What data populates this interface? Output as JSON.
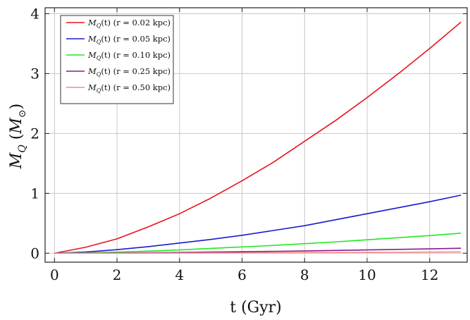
{
  "chart_data": {
    "type": "line",
    "title": "",
    "xlabel": "t (Gyr)",
    "ylabel_main": "M",
    "ylabel_sub": "Q",
    "ylabel_unit_main": "M",
    "ylabel_unit_sub": "⊙",
    "xlim": [
      -0.3,
      13.2
    ],
    "ylim": [
      -0.15,
      4.1
    ],
    "x_ticks": [
      0,
      2,
      4,
      6,
      8,
      10,
      12
    ],
    "y_ticks": [
      0,
      1,
      2,
      3,
      4
    ],
    "grid": true,
    "legend_position": "top-left",
    "x": [
      0,
      1,
      2,
      3,
      4,
      5,
      6,
      7,
      8,
      9,
      10,
      11,
      12,
      13
    ],
    "series": [
      {
        "legend_main": "M",
        "legend_sub": "Q",
        "legend_rest": "(t) (r = 0.02 kpc)",
        "color": "#e8141c",
        "values": [
          0.0,
          0.1,
          0.24,
          0.44,
          0.66,
          0.92,
          1.21,
          1.52,
          1.87,
          2.22,
          2.6,
          3.0,
          3.42,
          3.86
        ]
      },
      {
        "legend_main": "M",
        "legend_sub": "Q",
        "legend_rest": "(t) (r = 0.05 kpc)",
        "color": "#1a1ad0",
        "values": [
          0.0,
          0.02,
          0.06,
          0.11,
          0.17,
          0.23,
          0.3,
          0.38,
          0.46,
          0.56,
          0.66,
          0.76,
          0.86,
          0.97
        ]
      },
      {
        "legend_main": "M",
        "legend_sub": "Q",
        "legend_rest": "(t) (r = 0.10 kpc)",
        "color": "#22e822",
        "values": [
          0.0,
          0.005,
          0.02,
          0.035,
          0.055,
          0.08,
          0.105,
          0.13,
          0.16,
          0.19,
          0.225,
          0.26,
          0.295,
          0.335
        ]
      },
      {
        "legend_main": "M",
        "legend_sub": "Q",
        "legend_rest": "(t) (r = 0.25 kpc)",
        "color": "#8a1a8a",
        "values": [
          0.0,
          0.001,
          0.004,
          0.008,
          0.013,
          0.018,
          0.024,
          0.031,
          0.038,
          0.046,
          0.055,
          0.064,
          0.073,
          0.083
        ]
      },
      {
        "legend_main": "M",
        "legend_sub": "Q",
        "legend_rest": "(t) (r = 0.50 kpc)",
        "color": "#f08a8a",
        "values": [
          0.0,
          0.0005,
          0.001,
          0.002,
          0.003,
          0.005,
          0.006,
          0.008,
          0.01,
          0.012,
          0.014,
          0.016,
          0.018,
          0.021
        ]
      }
    ]
  }
}
